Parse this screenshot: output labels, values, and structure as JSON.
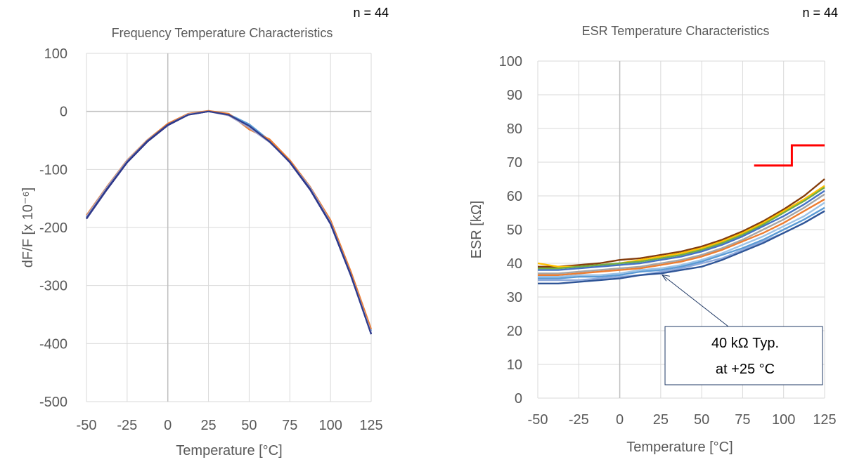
{
  "chart_data": [
    {
      "type": "line",
      "title": "Frequency Temperature Characteristics",
      "sample_note": "n = 44",
      "xlabel": "Temperature [°C]",
      "ylabel": "dF/F [x 10⁻⁶]",
      "xlim": [
        -50,
        125
      ],
      "ylim": [
        -500,
        100
      ],
      "xticks": [
        "-50",
        "-25",
        "0",
        "25",
        "50",
        "75",
        "100",
        "125"
      ],
      "yticks": [
        "100",
        "0",
        "-100",
        "-200",
        "-300",
        "-400",
        "-500"
      ],
      "grid": true,
      "x": [
        -50,
        -37.5,
        -25,
        -12.5,
        0,
        12.5,
        25,
        37.5,
        50,
        62.5,
        75,
        87.5,
        100,
        112.5,
        125
      ],
      "series": [
        {
          "values": [
            -185,
            -135,
            -88,
            -52,
            -24,
            -6,
            0,
            -6,
            -24,
            -52,
            -88,
            -135,
            -194,
            -283,
            -383
          ],
          "color": "#1f1f7a"
        },
        {
          "values": [
            -182,
            -132,
            -86,
            -50,
            -22,
            -5,
            1,
            -5,
            -22,
            -50,
            -86,
            -132,
            -190,
            -279,
            -378
          ],
          "color": "#5b9bd5"
        },
        {
          "values": [
            -179,
            -130,
            -84,
            -49,
            -21,
            -4,
            1,
            -4,
            -31,
            -48,
            -84,
            -130,
            -187,
            -276,
            -375
          ],
          "color": "#ed7d31"
        },
        {
          "values": [
            -181,
            -131,
            -85,
            -50,
            -23,
            -5,
            0,
            -7,
            -28,
            -53,
            -87,
            -131,
            -191,
            -281,
            -381
          ],
          "color": "#a5a5c8"
        },
        {
          "values": [
            -184,
            -134,
            -87,
            -51,
            -23,
            -6,
            0,
            -6,
            -25,
            -52,
            -87,
            -134,
            -193,
            -282,
            -384
          ],
          "color": "#2e3b8c"
        }
      ]
    },
    {
      "type": "line",
      "title": "ESR Temperature Characteristics",
      "sample_note": "n = 44",
      "xlabel": "Temperature [°C]",
      "ylabel": "ESR [kΩ]",
      "xlim": [
        -50,
        125
      ],
      "ylim": [
        0,
        100
      ],
      "xticks": [
        "-50",
        "-25",
        "0",
        "25",
        "50",
        "75",
        "100",
        "125"
      ],
      "yticks": [
        "100",
        "90",
        "80",
        "70",
        "60",
        "50",
        "40",
        "30",
        "20",
        "10",
        "0"
      ],
      "grid": true,
      "annotation": {
        "line1": "40 kΩ Typ.",
        "line2": "at +25 °C",
        "x": 25,
        "y": 37
      },
      "limit_line": {
        "color": "#ff0000",
        "x": [
          82,
          105,
          105,
          125
        ],
        "values": [
          69,
          69,
          75,
          75
        ]
      },
      "x": [
        -50,
        -37.5,
        -25,
        -12.5,
        0,
        12.5,
        25,
        37.5,
        50,
        62.5,
        75,
        87.5,
        100,
        112.5,
        125
      ],
      "series": [
        {
          "values": [
            39,
            39,
            39.5,
            40,
            41,
            41.5,
            42.5,
            43.5,
            45,
            47,
            49.5,
            52.5,
            56,
            60,
            65
          ],
          "color": "#843c0c"
        },
        {
          "values": [
            40,
            39,
            39,
            39.5,
            40,
            41,
            42,
            43,
            44.5,
            46.5,
            49,
            52,
            55.5,
            59,
            63
          ],
          "color": "#ffc000"
        },
        {
          "values": [
            38.5,
            38.5,
            39,
            39.5,
            40,
            40.5,
            41.5,
            42.5,
            44,
            46,
            48.5,
            51.5,
            55,
            58.5,
            62.5
          ],
          "color": "#70ad47"
        },
        {
          "values": [
            38,
            38,
            38.5,
            39,
            39.5,
            40,
            41,
            42,
            43.5,
            45.5,
            48,
            51,
            54,
            57.5,
            61.5
          ],
          "color": "#4472c4"
        },
        {
          "values": [
            37,
            37,
            37.5,
            38,
            38.5,
            39,
            40,
            41,
            42.5,
            44.5,
            47,
            50,
            53,
            56.5,
            60.5
          ],
          "color": "#a5a5a5"
        },
        {
          "values": [
            36.5,
            36.5,
            37,
            37.5,
            38,
            38.5,
            39.5,
            40.5,
            42,
            44,
            46.5,
            49,
            52,
            55.5,
            59
          ],
          "color": "#ed7d31"
        },
        {
          "values": [
            36,
            36,
            36.5,
            36.5,
            37,
            38,
            38.5,
            39.5,
            41,
            43,
            45.5,
            48,
            51,
            54,
            58
          ],
          "color": "#9dc3e6"
        },
        {
          "values": [
            35.5,
            35.5,
            36,
            36,
            36.5,
            37.5,
            38,
            39,
            40.5,
            42.5,
            44.5,
            47,
            50,
            53,
            56.5
          ],
          "color": "#5b9bd5"
        },
        {
          "values": [
            35,
            35,
            35,
            35.5,
            36,
            36.5,
            37.5,
            38.5,
            40,
            41.5,
            44,
            46.5,
            49,
            52,
            55.5
          ],
          "color": "#8faadc"
        },
        {
          "values": [
            34,
            34,
            34.5,
            35,
            35.5,
            36.5,
            37,
            38,
            39,
            41,
            43.5,
            46,
            49,
            52,
            55.5
          ],
          "color": "#2f5597"
        }
      ]
    }
  ]
}
